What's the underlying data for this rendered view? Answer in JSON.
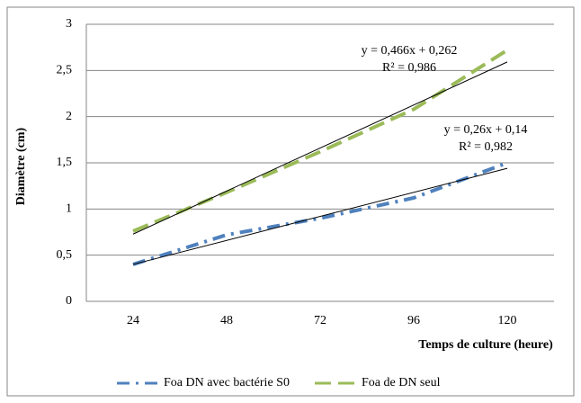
{
  "chart_data": {
    "type": "line",
    "x_label": "Temps de culture (heure)",
    "y_label": "Diamètre (cm)",
    "categories": [
      24,
      48,
      72,
      96,
      120
    ],
    "series": [
      {
        "name": "Foa DN avec bactérie S0",
        "color": "#4f81bd",
        "dash": "dashdot",
        "values": [
          0.4,
          0.72,
          0.9,
          1.12,
          1.5
        ]
      },
      {
        "name": "Foa de DN seul",
        "color": "#9bbb59",
        "dash": "dash",
        "values": [
          0.76,
          1.18,
          1.62,
          2.08,
          2.72
        ]
      }
    ],
    "trendlines": [
      {
        "slope": 0.466,
        "intercept": 0.262,
        "equation": "y = 0,466x + 0,262",
        "r2": "R² = 0,986"
      },
      {
        "slope": 0.26,
        "intercept": 0.14,
        "equation": "y = 0,26x + 0,14",
        "r2": "R² = 0,982"
      }
    ],
    "ylim": [
      0,
      3
    ],
    "yticks": [
      0,
      {
        "value": 0.5,
        "label": "0,5"
      },
      1,
      {
        "value": 1.5,
        "label": "1,5"
      },
      2,
      {
        "value": 2.5,
        "label": "2,5"
      },
      3
    ],
    "grid": true,
    "legend": "bottom"
  }
}
